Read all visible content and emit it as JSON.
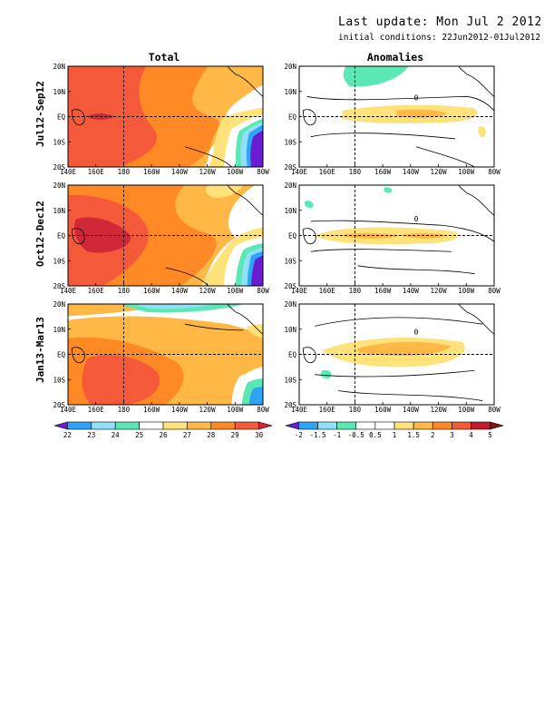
{
  "header": {
    "last_update": "Last update: Mon Jul 2 2012",
    "initial_conditions": "initial conditions: 22Jun2012-01Jul2012"
  },
  "columns": [
    {
      "title": "Total"
    },
    {
      "title": "Anomalies"
    }
  ],
  "rows": [
    {
      "label": "Jul12-Sep12"
    },
    {
      "label": "Oct12-Dec12"
    },
    {
      "label": "Jan13-Mar13"
    }
  ],
  "chart_data": {
    "type": "heatmap",
    "x_axis": {
      "ticks": [
        "140E",
        "160E",
        "180",
        "160W",
        "140W",
        "120W",
        "100W",
        "80W"
      ],
      "range": [
        "140E",
        "80W"
      ]
    },
    "y_axis": {
      "ticks": [
        "20S",
        "10S",
        "EQ",
        "10N",
        "20N"
      ],
      "range": [
        "20S",
        "20N"
      ]
    },
    "reference_lines": {
      "equator": "EQ",
      "dateline": "180"
    },
    "total_colorbar": {
      "levels": [
        "22",
        "23",
        "24",
        "25",
        "26",
        "27",
        "28",
        "29",
        "30"
      ],
      "colors": [
        "#6a1cd0",
        "#2fa4f7",
        "#8fe0f8",
        "#5be8b4",
        "#ffffff",
        "#ffe37a",
        "#ffb845",
        "#ff8a25",
        "#f45a3a",
        "#d02838"
      ]
    },
    "anomaly_colorbar": {
      "levels": [
        "-2",
        "-1.5",
        "-1",
        "-0.5",
        "0.5",
        "1",
        "1.5",
        "2",
        "3",
        "4",
        "5"
      ],
      "colors": [
        "#6a1cd0",
        "#2fa4f7",
        "#8fe0f8",
        "#5be8b4",
        "#ffffff",
        "#ffffff",
        "#ffe37a",
        "#ffb845",
        "#ff8a25",
        "#f45a3a",
        "#c01a2a",
        "#8a1010"
      ]
    },
    "contour_labels": {
      "anomaly_zero": "0"
    },
    "panels": [
      {
        "row": "Jul12-Sep12",
        "column": "Total"
      },
      {
        "row": "Jul12-Sep12",
        "column": "Anomalies"
      },
      {
        "row": "Oct12-Dec12",
        "column": "Total"
      },
      {
        "row": "Oct12-Dec12",
        "column": "Anomalies"
      },
      {
        "row": "Jan13-Mar13",
        "column": "Total"
      },
      {
        "row": "Jan13-Mar13",
        "column": "Anomalies"
      }
    ]
  }
}
